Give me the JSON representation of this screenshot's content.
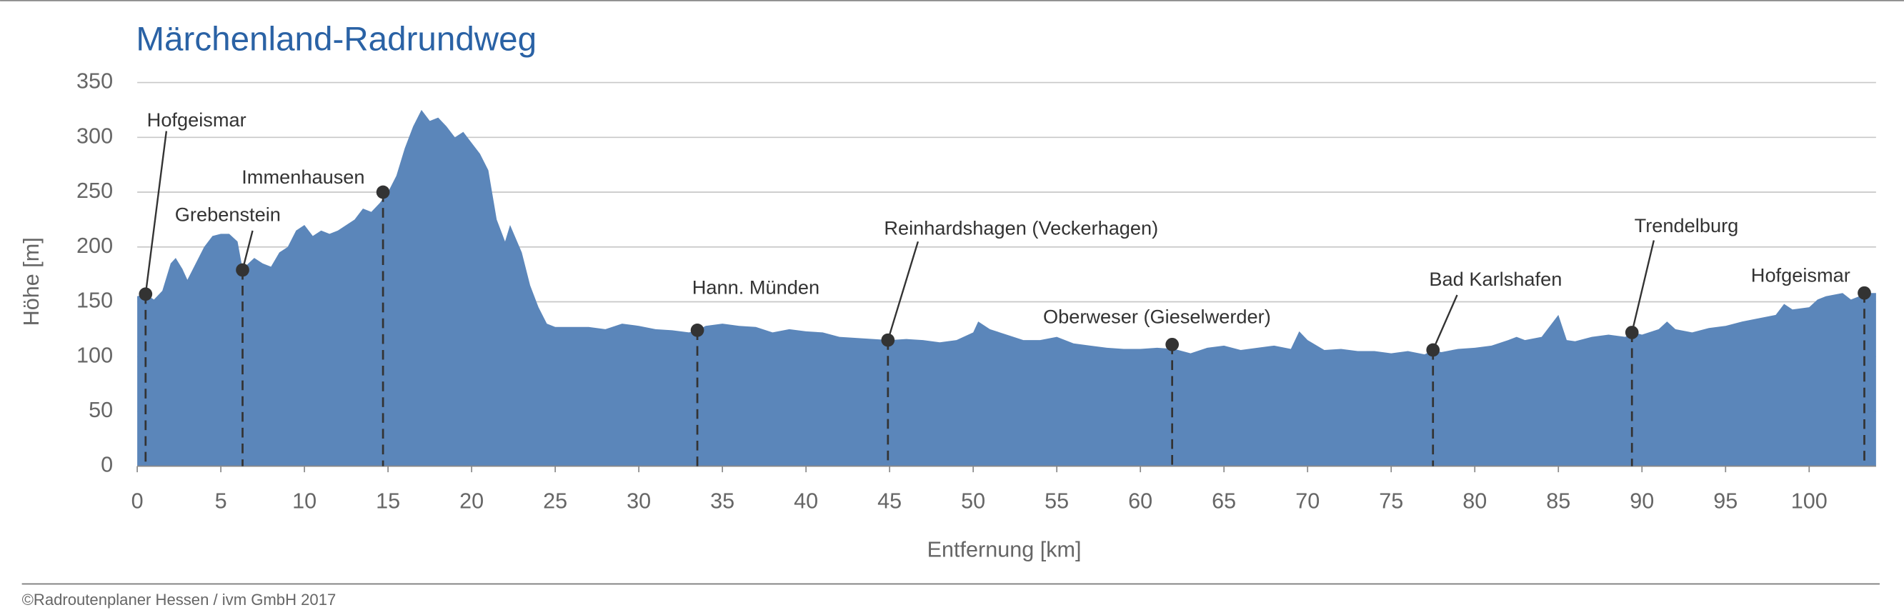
{
  "chart_data": {
    "type": "area",
    "title": "Märchenland-Radrundweg",
    "xlabel": "Entfernung [km]",
    "ylabel": "Höhe [m]",
    "credit": "©Radroutenplaner Hessen / ivm GmbH 2017",
    "color": "#5b86ba",
    "grid": true,
    "xlim": [
      0,
      104
    ],
    "ylim": [
      0,
      350
    ],
    "xticks": [
      0,
      5,
      10,
      15,
      20,
      25,
      30,
      35,
      40,
      45,
      50,
      55,
      60,
      65,
      70,
      75,
      80,
      85,
      90,
      95,
      100
    ],
    "yticks": [
      0,
      50,
      100,
      150,
      200,
      250,
      300,
      350
    ],
    "x": [
      0,
      0.5,
      1,
      1.5,
      2,
      2.3,
      2.7,
      3,
      3.5,
      4,
      4.5,
      5,
      5.5,
      6,
      6.3,
      7,
      7.5,
      8,
      8.5,
      9,
      9.5,
      10,
      10.5,
      11,
      11.5,
      12,
      13,
      13.5,
      14,
      14.5,
      15,
      15.5,
      16,
      16.5,
      17,
      17.5,
      18,
      18.5,
      19,
      19.5,
      20,
      20.5,
      21,
      21.5,
      22,
      22.3,
      23,
      23.5,
      24,
      24.5,
      25,
      27,
      28,
      29,
      30,
      31,
      32,
      33,
      33.5,
      34,
      35,
      36,
      37,
      38,
      39,
      40,
      41,
      42,
      43,
      44,
      45,
      46,
      47,
      48,
      49,
      50,
      50.3,
      51,
      52,
      53,
      54,
      55,
      56,
      57,
      58,
      59,
      60,
      61,
      62,
      63,
      64,
      65,
      66,
      67,
      68,
      69,
      69.5,
      70,
      71,
      72,
      73,
      74,
      75,
      76,
      77,
      77.5,
      78,
      79,
      80,
      81,
      82,
      82.5,
      83,
      84,
      85,
      85.5,
      86,
      87,
      88,
      89,
      89.5,
      90,
      91,
      91.5,
      92,
      93,
      94,
      95,
      96,
      97,
      98,
      98.5,
      99,
      100,
      100.5,
      101,
      102,
      102.5,
      103,
      103.5,
      104
    ],
    "values": [
      155,
      157,
      152,
      160,
      185,
      190,
      180,
      170,
      185,
      200,
      210,
      212,
      212,
      205,
      180,
      190,
      185,
      182,
      195,
      200,
      215,
      220,
      210,
      215,
      212,
      215,
      225,
      235,
      232,
      240,
      250,
      265,
      290,
      310,
      325,
      315,
      318,
      310,
      300,
      305,
      295,
      285,
      270,
      225,
      205,
      220,
      195,
      165,
      145,
      130,
      127,
      127,
      125,
      130,
      128,
      125,
      124,
      122,
      124,
      128,
      130,
      128,
      127,
      122,
      125,
      123,
      122,
      118,
      117,
      116,
      115,
      116,
      115,
      113,
      115,
      122,
      132,
      125,
      120,
      115,
      115,
      118,
      112,
      110,
      108,
      107,
      107,
      108,
      107,
      103,
      108,
      110,
      106,
      108,
      110,
      107,
      123,
      115,
      106,
      107,
      105,
      105,
      103,
      105,
      102,
      106,
      104,
      107,
      108,
      110,
      115,
      118,
      115,
      118,
      138,
      115,
      114,
      118,
      120,
      118,
      122,
      120,
      125,
      132,
      125,
      122,
      126,
      128,
      132,
      135,
      138,
      148,
      143,
      145,
      152,
      155,
      158,
      152,
      155,
      158,
      158
    ],
    "markers": [
      {
        "label": "Hofgeismar",
        "x": 0.5,
        "y": 157
      },
      {
        "label": "Grebenstein",
        "x": 6.3,
        "y": 179
      },
      {
        "label": "Immenhausen",
        "x": 14.7,
        "y": 250
      },
      {
        "label": "Hann. Münden",
        "x": 33.5,
        "y": 124
      },
      {
        "label": "Reinhardshagen (Veckerhagen)",
        "x": 44.9,
        "y": 115
      },
      {
        "label": "Oberweser (Gieselwerder)",
        "x": 61.9,
        "y": 111
      },
      {
        "label": "Bad Karlshafen",
        "x": 77.5,
        "y": 106
      },
      {
        "label": "Trendelburg",
        "x": 89.4,
        "y": 122
      },
      {
        "label": "Hofgeismar",
        "x": 103.3,
        "y": 158
      }
    ]
  }
}
